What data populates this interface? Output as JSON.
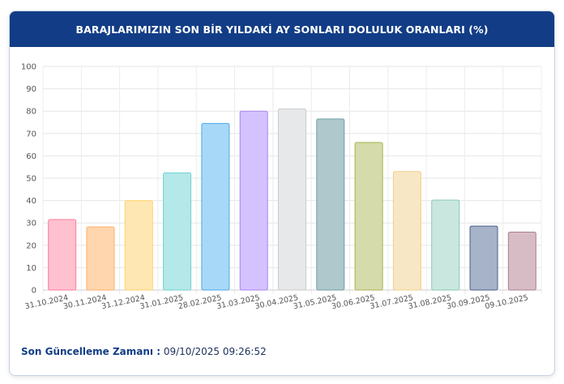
{
  "header": {
    "title": "BARAJLARIMIZIN SON BİR YILDAKİ AY SONLARI DOLULUK ORANLARI (%)"
  },
  "footer": {
    "label": "Son Güncelleme Zamanı :",
    "value": "09/10/2025 09:26:52"
  },
  "chart_data": {
    "type": "bar",
    "title": "BARAJLARIMIZIN SON BİR YILDAKİ AY SONLARI DOLULUK ORANLARI (%)",
    "categories": [
      "31.10.2024",
      "30.11.2024",
      "31.12.2024",
      "31.01.2025",
      "28.02.2025",
      "31.03.2025",
      "30.04.2025",
      "31.05.2025",
      "30.06.2025",
      "31.07.2025",
      "31.08.2025",
      "30.09.2025",
      "09.10.2025"
    ],
    "values": [
      31.5,
      28.2,
      40.0,
      52.4,
      74.5,
      80.0,
      81.0,
      76.5,
      66.0,
      53.0,
      40.2,
      28.6,
      25.9
    ],
    "colors": [
      "#ffc0cf",
      "#ffd6ad",
      "#ffe7b3",
      "#b5e8e8",
      "#a8d8f8",
      "#d4c2ff",
      "#e7e8ea",
      "#aec8cc",
      "#d5dbaa",
      "#f8e7c4",
      "#c9e7df",
      "#a6b3c8",
      "#d8bcc5"
    ],
    "border_colors": [
      "#ff7d9c",
      "#ffad66",
      "#ffd266",
      "#6fd1d1",
      "#4aa8e8",
      "#a883f0",
      "#c9cacc",
      "#6f9ca3",
      "#a9b34e",
      "#f0cf8a",
      "#88c8b4",
      "#4a5f8a",
      "#a8808e"
    ],
    "ylim": [
      0,
      100
    ],
    "yticks": [
      0,
      10,
      20,
      30,
      40,
      50,
      60,
      70,
      80,
      90,
      100
    ],
    "grid": true,
    "legend": "none"
  }
}
